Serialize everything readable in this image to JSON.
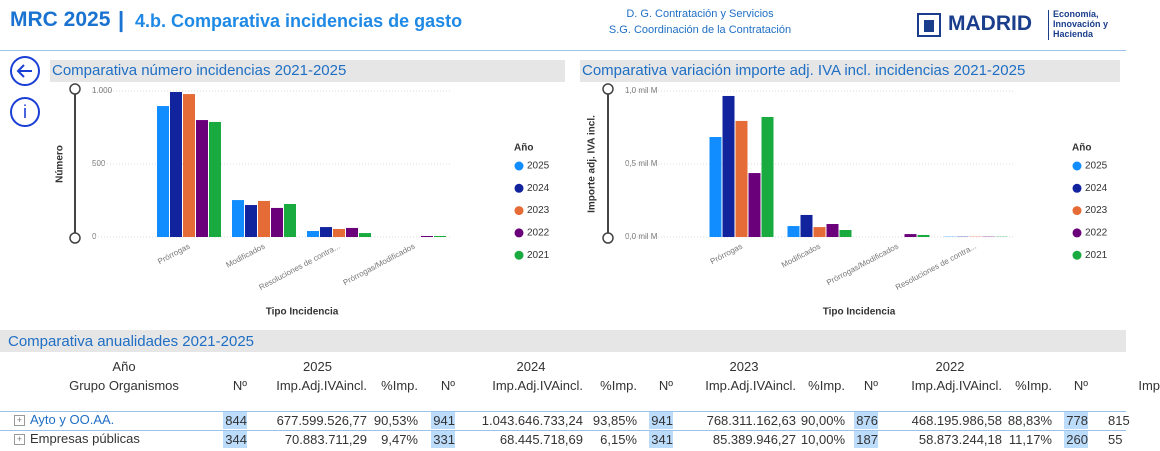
{
  "header": {
    "title": "MRC 2025",
    "separator": "|",
    "subtitle": "4.b. Comparativa incidencias de gasto",
    "org_line1": "D. G. Contratación y Servicios",
    "org_line2": "S.G. Coordinación de la Contratación",
    "logo": "MADRID",
    "dept": [
      "Economía,",
      "Innovación y",
      "Hacienda"
    ]
  },
  "chart_data": [
    {
      "type": "bar",
      "title": "Comparativa número incidencias 2021-2025",
      "y_label": "Número",
      "x_label": "Tipo Incidencia",
      "legend_title": "Año",
      "grid": true,
      "categories": [
        "Prórrogas",
        "Modificados",
        "Resoluciones de contra...",
        "Prórrogas/Modificados"
      ],
      "series": [
        {
          "name": "2025",
          "color": "#118DFF",
          "values": [
            897,
            253,
            41,
            0
          ]
        },
        {
          "name": "2024",
          "color": "#12239E",
          "values": [
            993,
            219,
            68,
            0
          ]
        },
        {
          "name": "2023",
          "color": "#E66C37",
          "values": [
            979,
            247,
            55,
            0
          ]
        },
        {
          "name": "2022",
          "color": "#6B007B",
          "values": [
            801,
            199,
            62,
            7
          ]
        },
        {
          "name": "2021",
          "color": "#1AAB40",
          "values": [
            788,
            226,
            27,
            7
          ]
        }
      ],
      "ylim": [
        0,
        1020
      ],
      "yticks": [
        0,
        500,
        {
          "value": 1000,
          "label": "1.000"
        }
      ]
    },
    {
      "type": "bar",
      "title": "Comparativa variación importe adj. IVA incl. incidencias 2021-2025",
      "y_label": "Importe adj. IVA incl.",
      "x_label": "Tipo Incidencia",
      "legend_title": "Año",
      "grid": true,
      "categories": [
        "Prórrogas",
        "Modificados",
        "Prórrogas/Modificados",
        "Resoluciones de contra..."
      ],
      "series": [
        {
          "name": "2025",
          "color": "#118DFF",
          "values": [
            0.685,
            0.075,
            0,
            0.002
          ]
        },
        {
          "name": "2024",
          "color": "#12239E",
          "values": [
            0.966,
            0.151,
            0,
            0.002
          ]
        },
        {
          "name": "2023",
          "color": "#E66C37",
          "values": [
            0.795,
            0.068,
            0,
            0.002
          ]
        },
        {
          "name": "2022",
          "color": "#6B007B",
          "values": [
            0.438,
            0.089,
            0.02,
            0.002
          ]
        },
        {
          "name": "2021",
          "color": "#1AAB40",
          "values": [
            0.822,
            0.048,
            0.014,
            0.002
          ]
        }
      ],
      "ylim": [
        0,
        1.02
      ],
      "yticks": [
        {
          "value": 0,
          "label": "0,0 mil M"
        },
        {
          "value": 0.5,
          "label": "0,5 mil M"
        },
        {
          "value": 1,
          "label": "1,0 mil M"
        }
      ]
    }
  ],
  "table": {
    "title": "Comparativa anualidades 2021-2025",
    "year_label": "Año",
    "years": [
      "2025",
      "2024",
      "2023",
      "2022"
    ],
    "group_label": "Grupo Organismos",
    "columns": [
      "Nº",
      "Imp.Adj.IVAincl.",
      "%Imp.",
      "Nº",
      "Imp.Adj.IVAincl.",
      "%Imp.",
      "Nº",
      "Imp.Adj.IVAincl.",
      "%Imp.",
      "Nº",
      "Imp.Adj.IVAincl.",
      "%Imp.",
      "Nº",
      "Imp"
    ],
    "rows": [
      {
        "name": "Ayto y OO.AA.",
        "cells": [
          "844",
          "677.599.526,77",
          "90,53%",
          "941",
          "1.043.646.733,24",
          "93,85%",
          "941",
          "768.311.162,63",
          "90,00%",
          "876",
          "468.195.986,58",
          "88,83%",
          "778",
          "815"
        ]
      },
      {
        "name": "Empresas públicas",
        "cells": [
          "344",
          "70.883.711,29",
          "9,47%",
          "331",
          "68.445.718,69",
          "6,15%",
          "341",
          "85.389.946,27",
          "10,00%",
          "187",
          "58.873.244,18",
          "11,17%",
          "260",
          "55"
        ]
      }
    ]
  }
}
